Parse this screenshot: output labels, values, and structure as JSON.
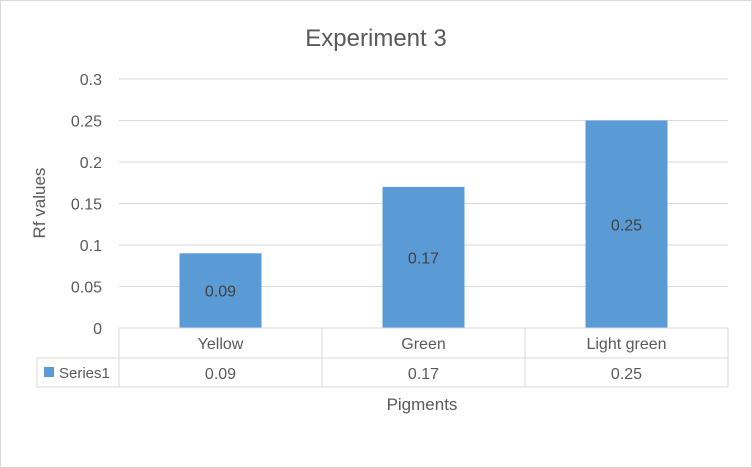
{
  "chart_data": {
    "type": "bar",
    "title": "Experiment 3",
    "xlabel": "Pigments",
    "ylabel": "Rf values",
    "categories": [
      "Yellow",
      "Green",
      "Light green"
    ],
    "series": [
      {
        "name": "Series1",
        "values": [
          0.09,
          0.17,
          0.25
        ],
        "color": "#5b9bd5"
      }
    ],
    "data_labels": [
      "0.09",
      "0.17",
      "0.25"
    ],
    "data_table_values": [
      "0.09",
      "0.17",
      "0.25"
    ],
    "ylim": [
      0,
      0.3
    ],
    "yticks": [
      0,
      0.05,
      0.1,
      0.15,
      0.2,
      0.25,
      0.3
    ],
    "ytick_labels": [
      "0",
      "0.05",
      "0.1",
      "0.15",
      "0.2",
      "0.25",
      "0.3"
    ],
    "grid": true,
    "legend": "data-table",
    "colors": {
      "bar": "#5b9bd5",
      "grid": "#d9d9d9",
      "text": "#595959"
    }
  }
}
